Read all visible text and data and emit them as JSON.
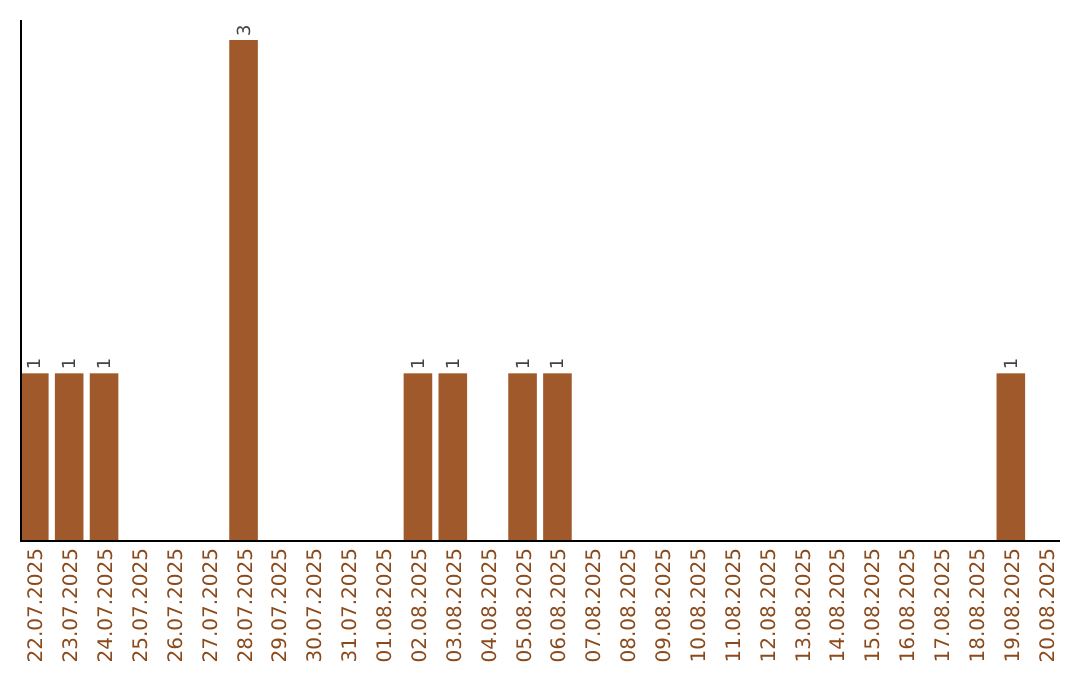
{
  "chart_data": {
    "type": "bar",
    "categories": [
      "22.07.2025",
      "23.07.2025",
      "24.07.2025",
      "25.07.2025",
      "26.07.2025",
      "27.07.2025",
      "28.07.2025",
      "29.07.2025",
      "30.07.2025",
      "31.07.2025",
      "01.08.2025",
      "02.08.2025",
      "03.08.2025",
      "04.08.2025",
      "05.08.2025",
      "06.08.2025",
      "07.08.2025",
      "08.08.2025",
      "09.08.2025",
      "10.08.2025",
      "11.08.2025",
      "12.08.2025",
      "13.08.2025",
      "14.08.2025",
      "15.08.2025",
      "16.08.2025",
      "17.08.2025",
      "18.08.2025",
      "19.08.2025",
      "20.08.2025"
    ],
    "values": [
      1,
      1,
      1,
      0,
      0,
      0,
      3,
      0,
      0,
      0,
      0,
      1,
      1,
      0,
      1,
      1,
      0,
      0,
      0,
      0,
      0,
      0,
      0,
      0,
      0,
      0,
      0,
      0,
      1,
      0
    ],
    "value_labels": [
      "1",
      "1",
      "1",
      null,
      null,
      null,
      "3",
      null,
      null,
      null,
      null,
      "1",
      "1",
      null,
      "1",
      "1",
      null,
      null,
      null,
      null,
      null,
      null,
      null,
      null,
      null,
      null,
      null,
      null,
      "1",
      null
    ],
    "color": "#a0592a",
    "tick_labels": "x"
  }
}
